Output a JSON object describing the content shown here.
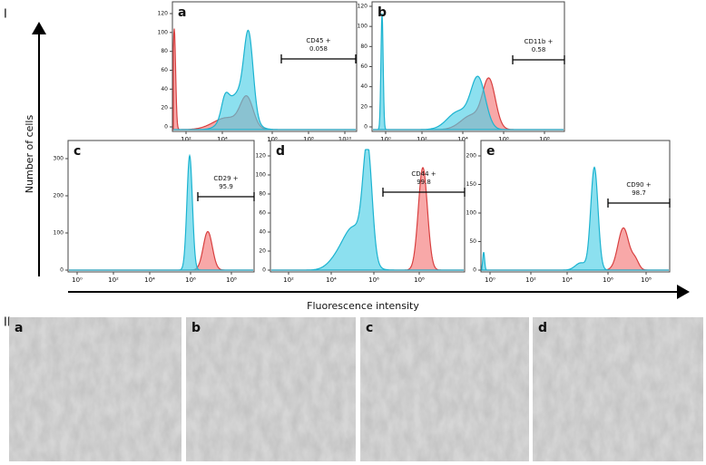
{
  "section_labels": [
    "I",
    "II"
  ],
  "y_axis_label": "Number of cells",
  "x_axis_label": "Fluorescence intensity",
  "panels": [
    {
      "label": "a",
      "yticks": [
        0,
        20,
        40,
        60,
        80,
        100,
        120
      ],
      "xticks": [
        "10²",
        "10⁴",
        "10⁶",
        "10⁸",
        "10¹⁰"
      ],
      "gate": {
        "marker": "CD45 +",
        "value": "0.058"
      }
    },
    {
      "label": "b",
      "yticks": [
        0,
        20,
        40,
        60,
        80,
        100,
        120
      ],
      "xticks": [
        "10⁰",
        "10²",
        "10⁴",
        "10⁶",
        "10⁸"
      ],
      "gate": {
        "marker": "CD11b +",
        "value": "0.58"
      }
    },
    {
      "label": "c",
      "yticks": [
        0,
        100,
        200,
        300
      ],
      "xticks": [
        "10⁰",
        "10²",
        "10⁴",
        "10⁶",
        "10⁸"
      ],
      "gate": {
        "marker": "CD29 +",
        "value": "95.9"
      }
    },
    {
      "label": "d",
      "yticks": [
        0,
        20,
        40,
        60,
        80,
        100,
        120
      ],
      "xticks": [
        "10²",
        "10⁴",
        "10⁶",
        "10⁸"
      ],
      "gate": {
        "marker": "CD44 +",
        "value": "99.8"
      }
    },
    {
      "label": "e",
      "yticks": [
        0,
        50,
        100,
        150,
        200
      ],
      "xticks": [
        "10⁰",
        "10²",
        "10⁴",
        "10⁶",
        "10⁸"
      ],
      "gate": {
        "marker": "CD90 +",
        "value": "98.7"
      }
    }
  ],
  "images": [
    {
      "label": "a"
    },
    {
      "label": "b"
    },
    {
      "label": "c"
    },
    {
      "label": "d"
    }
  ]
}
